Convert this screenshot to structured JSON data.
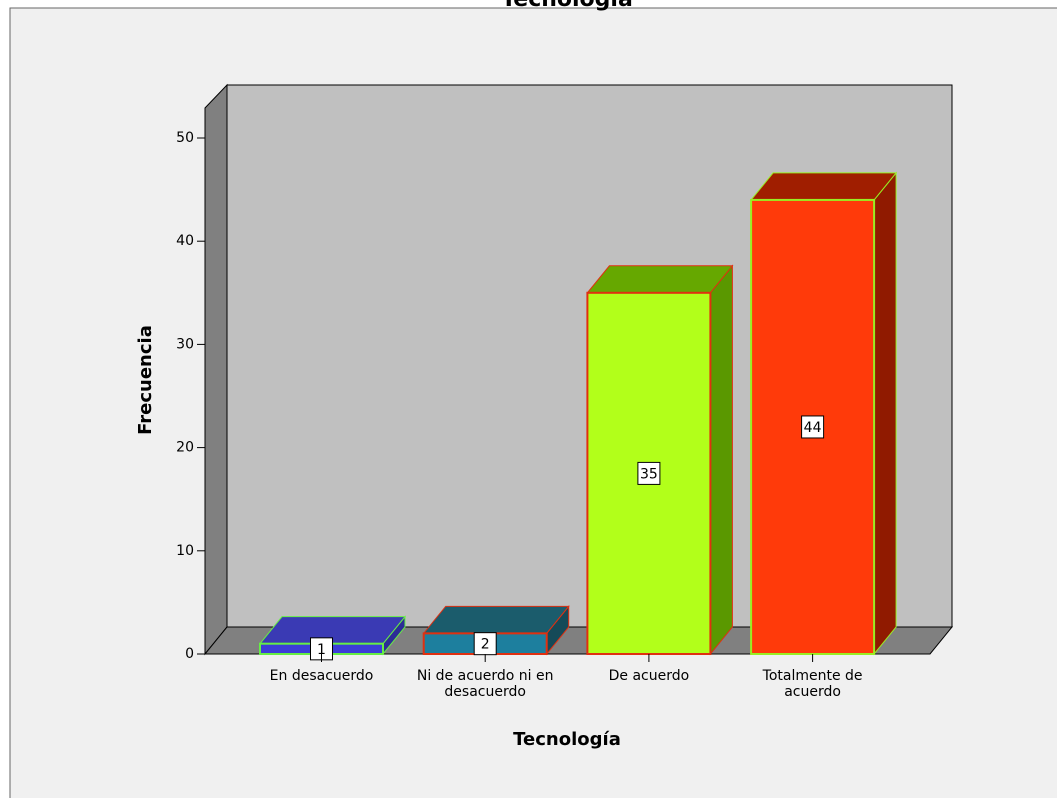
{
  "chart_data": {
    "type": "bar3d",
    "title": "Tecnología",
    "categories": [
      "En desacuerdo",
      "Ni de acuerdo ni en desacuerdo",
      "De acuerdo",
      "Totalmente de acuerdo"
    ],
    "values": [
      1,
      2,
      35,
      44
    ],
    "colors": [
      {
        "front": "#3c3cd8",
        "top": "#3a3ab4",
        "side": "#2c2c96",
        "edge": "#66ee44"
      },
      {
        "front": "#1d7f9e",
        "top": "#1b5c6c",
        "side": "#154a58",
        "edge": "#e03010"
      },
      {
        "front": "#b2ff1a",
        "top": "#66a800",
        "side": "#5a9800",
        "edge": "#e03010"
      },
      {
        "front": "#ff3a0a",
        "top": "#a01e00",
        "side": "#901a00",
        "edge": "#99ee22"
      }
    ],
    "xlabel": "Tecnología",
    "ylabel": "Frecuencia",
    "ylim": [
      0,
      53
    ],
    "yticks": [
      0,
      10,
      20,
      30,
      40,
      50
    ]
  }
}
